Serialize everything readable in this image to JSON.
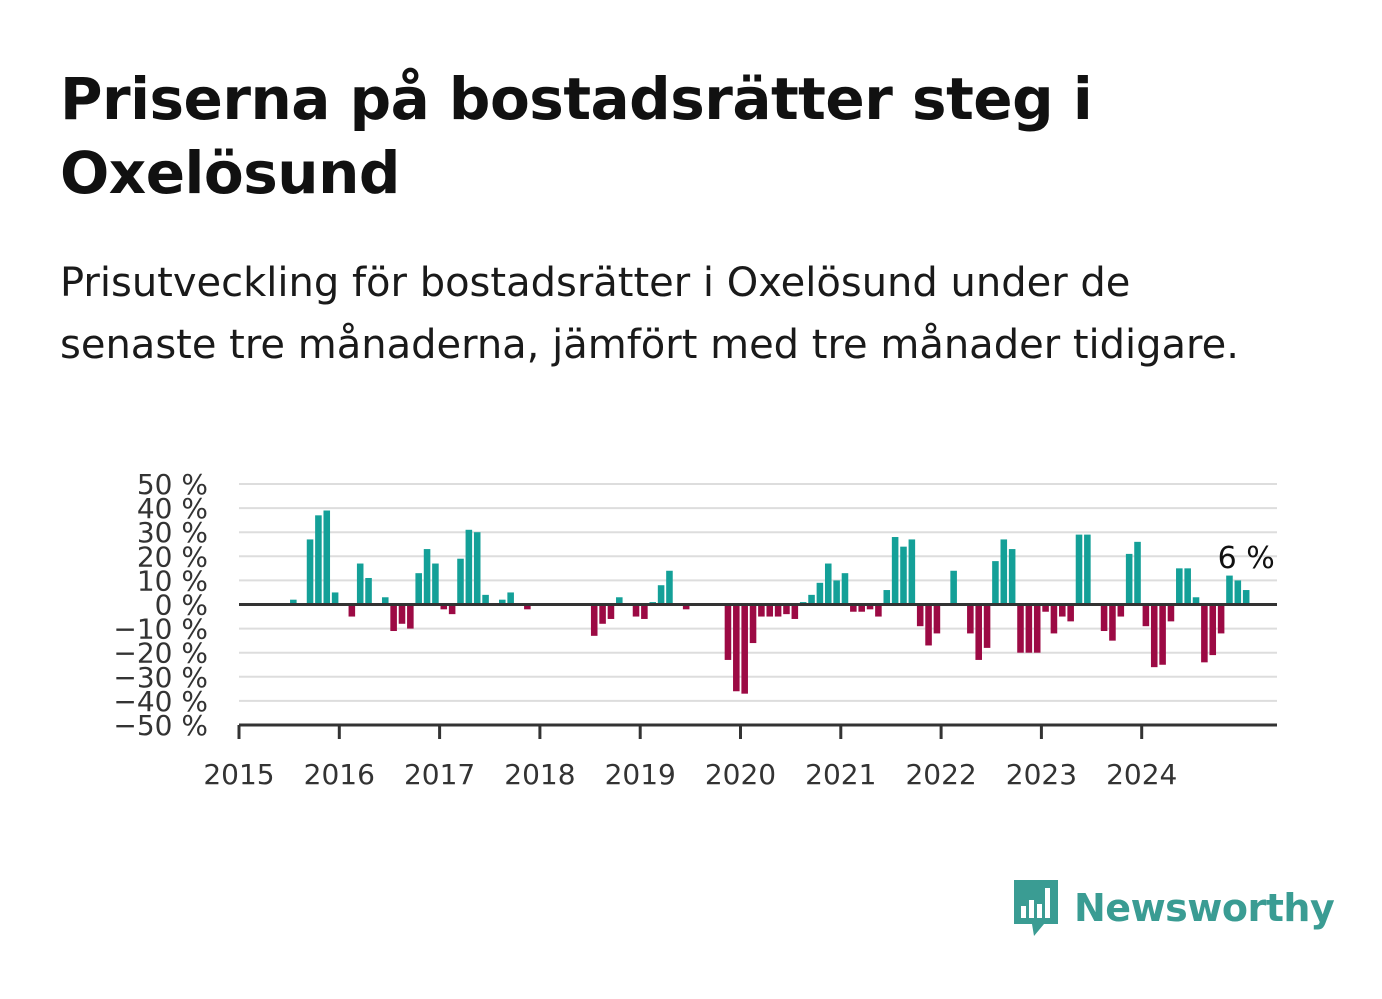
{
  "title": "Priserna på bostadsrätter steg i Oxelösund",
  "subtitle": "Prisutveckling för bostadsrätter i Oxelösund under de senaste tre månaderna, jämfört med tre månader tidigare.",
  "brand": {
    "name": "Newsworthy",
    "color": "#3a9c93",
    "icon": "newsworthy-bar-chart-logo-icon"
  },
  "colors": {
    "positive": "#14a098",
    "negative": "#9c0a44",
    "grid": "#dddddd",
    "axis": "#333333"
  },
  "chart_data": {
    "type": "bar",
    "x_start": "2015-01",
    "interval": "month",
    "ylim": [
      -50,
      50
    ],
    "y_ticks": [
      50,
      40,
      30,
      20,
      10,
      0,
      -10,
      -20,
      -30,
      -40,
      -50
    ],
    "y_tick_labels": [
      "50 %",
      "40 %",
      "30 %",
      "20 %",
      "10 %",
      "0 %",
      "−10 %",
      "−20 %",
      "−30 %",
      "−40 %",
      "−50 %"
    ],
    "x_tick_labels": [
      "2015",
      "2016",
      "2017",
      "2018",
      "2019",
      "2020",
      "2021",
      "2022",
      "2023",
      "2024"
    ],
    "grid": true,
    "annotation": {
      "text": "6 %",
      "value": 6
    },
    "values": [
      0,
      0,
      0,
      0,
      0,
      0,
      2,
      0,
      27,
      37,
      39,
      5,
      0,
      -5,
      17,
      11,
      0,
      3,
      -11,
      -8,
      -10,
      13,
      23,
      17,
      -2,
      -4,
      19,
      31,
      30,
      4,
      0,
      2,
      5,
      0,
      -2,
      0,
      0,
      0,
      0,
      0,
      0,
      0,
      -13,
      -8,
      -6,
      3,
      0,
      -5,
      -6,
      1,
      8,
      14,
      0,
      -2,
      0,
      0,
      0,
      0,
      -23,
      -36,
      -37,
      -16,
      -5,
      -5,
      -5,
      -4,
      -6,
      1,
      4,
      9,
      17,
      10,
      13,
      -3,
      -3,
      -2,
      -5,
      6,
      28,
      24,
      27,
      -9,
      -17,
      -12,
      0,
      14,
      0,
      -12,
      -23,
      -18,
      18,
      27,
      23,
      -20,
      -20,
      -20,
      -3,
      -12,
      -5,
      -7,
      29,
      29,
      0,
      -11,
      -15,
      -5,
      21,
      26,
      -9,
      -26,
      -25,
      -7,
      15,
      15,
      3,
      -24,
      -21,
      -12,
      12,
      10,
      6
    ]
  }
}
